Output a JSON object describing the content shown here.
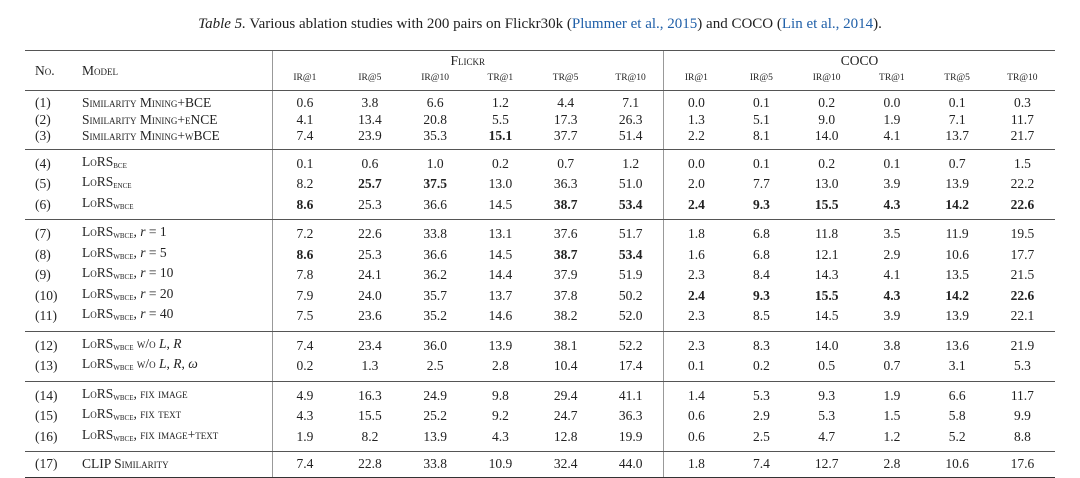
{
  "caption": {
    "label": "Table 5.",
    "text_before": " Various ablation studies with 200 pairs on Flickr30k (",
    "cite1": "Plummer et al., 2015",
    "text_mid": ") and COCO (",
    "cite2": "Lin et al., 2014",
    "text_after": ")."
  },
  "header": {
    "no": "No.",
    "model": "Model",
    "groups": [
      "Flickr",
      "COCO"
    ],
    "metrics": [
      "IR@1",
      "IR@5",
      "IR@10",
      "TR@1",
      "TR@5",
      "TR@10",
      "IR@1",
      "IR@5",
      "IR@10",
      "TR@1",
      "TR@5",
      "TR@10"
    ]
  },
  "groups": [
    [
      {
        "no": "(1)",
        "model": [
          {
            "t": "Similarity Mining+BCE",
            "c": "sc"
          }
        ],
        "values": [
          "0.6",
          "3.8",
          "6.6",
          "1.2",
          "4.4",
          "7.1",
          "0.0",
          "0.1",
          "0.2",
          "0.0",
          "0.1",
          "0.3"
        ],
        "bold": []
      },
      {
        "no": "(2)",
        "model": [
          {
            "t": "Similarity Mining+eNCE",
            "c": "sc"
          }
        ],
        "values": [
          "4.1",
          "13.4",
          "20.8",
          "5.5",
          "17.3",
          "26.3",
          "1.3",
          "5.1",
          "9.0",
          "1.9",
          "7.1",
          "11.7"
        ],
        "bold": []
      },
      {
        "no": "(3)",
        "model": [
          {
            "t": "Similarity Mining+wBCE",
            "c": "sc"
          }
        ],
        "values": [
          "7.4",
          "23.9",
          "35.3",
          "15.1",
          "37.7",
          "51.4",
          "2.2",
          "8.1",
          "14.0",
          "4.1",
          "13.7",
          "21.7"
        ],
        "bold": [
          3
        ]
      }
    ],
    [
      {
        "no": "(4)",
        "model": [
          {
            "t": "LoRS",
            "c": "sc"
          },
          {
            "t": "bce",
            "c": "sub"
          }
        ],
        "values": [
          "0.1",
          "0.6",
          "1.0",
          "0.2",
          "0.7",
          "1.2",
          "0.0",
          "0.1",
          "0.2",
          "0.1",
          "0.7",
          "1.5"
        ],
        "bold": []
      },
      {
        "no": "(5)",
        "model": [
          {
            "t": "LoRS",
            "c": "sc"
          },
          {
            "t": "ence",
            "c": "sub"
          }
        ],
        "values": [
          "8.2",
          "25.7",
          "37.5",
          "13.0",
          "36.3",
          "51.0",
          "2.0",
          "7.7",
          "13.0",
          "3.9",
          "13.9",
          "22.2"
        ],
        "bold": [
          1,
          2
        ]
      },
      {
        "no": "(6)",
        "model": [
          {
            "t": "LoRS",
            "c": "sc"
          },
          {
            "t": "wbce",
            "c": "sub"
          }
        ],
        "values": [
          "8.6",
          "25.3",
          "36.6",
          "14.5",
          "38.7",
          "53.4",
          "2.4",
          "9.3",
          "15.5",
          "4.3",
          "14.2",
          "22.6"
        ],
        "bold": [
          0,
          4,
          5,
          6,
          7,
          8,
          9,
          10,
          11
        ]
      }
    ],
    [
      {
        "no": "(7)",
        "model": [
          {
            "t": "LoRS",
            "c": "sc"
          },
          {
            "t": "wbce",
            "c": "sub"
          },
          {
            "t": ", ",
            "c": ""
          },
          {
            "t": "r",
            "c": "it"
          },
          {
            "t": " = 1",
            "c": ""
          }
        ],
        "values": [
          "7.2",
          "22.6",
          "33.8",
          "13.1",
          "37.6",
          "51.7",
          "1.8",
          "6.8",
          "11.8",
          "3.5",
          "11.9",
          "19.5"
        ],
        "bold": []
      },
      {
        "no": "(8)",
        "model": [
          {
            "t": "LoRS",
            "c": "sc"
          },
          {
            "t": "wbce",
            "c": "sub"
          },
          {
            "t": ", ",
            "c": ""
          },
          {
            "t": "r",
            "c": "it"
          },
          {
            "t": " = 5",
            "c": ""
          }
        ],
        "values": [
          "8.6",
          "25.3",
          "36.6",
          "14.5",
          "38.7",
          "53.4",
          "1.6",
          "6.8",
          "12.1",
          "2.9",
          "10.6",
          "17.7"
        ],
        "bold": [
          0,
          4,
          5
        ]
      },
      {
        "no": "(9)",
        "model": [
          {
            "t": "LoRS",
            "c": "sc"
          },
          {
            "t": "wbce",
            "c": "sub"
          },
          {
            "t": ", ",
            "c": ""
          },
          {
            "t": "r",
            "c": "it"
          },
          {
            "t": " = 10",
            "c": ""
          }
        ],
        "values": [
          "7.8",
          "24.1",
          "36.2",
          "14.4",
          "37.9",
          "51.9",
          "2.3",
          "8.4",
          "14.3",
          "4.1",
          "13.5",
          "21.5"
        ],
        "bold": []
      },
      {
        "no": "(10)",
        "model": [
          {
            "t": "LoRS",
            "c": "sc"
          },
          {
            "t": "wbce",
            "c": "sub"
          },
          {
            "t": ", ",
            "c": ""
          },
          {
            "t": "r",
            "c": "it"
          },
          {
            "t": " = 20",
            "c": ""
          }
        ],
        "values": [
          "7.9",
          "24.0",
          "35.7",
          "13.7",
          "37.8",
          "50.2",
          "2.4",
          "9.3",
          "15.5",
          "4.3",
          "14.2",
          "22.6"
        ],
        "bold": [
          6,
          7,
          8,
          9,
          10,
          11
        ]
      },
      {
        "no": "(11)",
        "model": [
          {
            "t": "LoRS",
            "c": "sc"
          },
          {
            "t": "wbce",
            "c": "sub"
          },
          {
            "t": ", ",
            "c": ""
          },
          {
            "t": "r",
            "c": "it"
          },
          {
            "t": " = 40",
            "c": ""
          }
        ],
        "values": [
          "7.5",
          "23.6",
          "35.2",
          "14.6",
          "38.2",
          "52.0",
          "2.3",
          "8.5",
          "14.5",
          "3.9",
          "13.9",
          "22.1"
        ],
        "bold": []
      }
    ],
    [
      {
        "no": "(12)",
        "model": [
          {
            "t": "LoRS",
            "c": "sc"
          },
          {
            "t": "wbce",
            "c": "sub"
          },
          {
            "t": " w/o ",
            "c": "sc"
          },
          {
            "t": "L",
            "c": "it"
          },
          {
            "t": ", ",
            "c": ""
          },
          {
            "t": "R",
            "c": "it"
          }
        ],
        "values": [
          "7.4",
          "23.4",
          "36.0",
          "13.9",
          "38.1",
          "52.2",
          "2.3",
          "8.3",
          "14.0",
          "3.8",
          "13.6",
          "21.9"
        ],
        "bold": []
      },
      {
        "no": "(13)",
        "model": [
          {
            "t": "LoRS",
            "c": "sc"
          },
          {
            "t": "wbce",
            "c": "sub"
          },
          {
            "t": " w/o ",
            "c": "sc"
          },
          {
            "t": "L",
            "c": "it"
          },
          {
            "t": ", ",
            "c": ""
          },
          {
            "t": "R",
            "c": "it"
          },
          {
            "t": ", ",
            "c": ""
          },
          {
            "t": "ω",
            "c": "it"
          }
        ],
        "values": [
          "0.2",
          "1.3",
          "2.5",
          "2.8",
          "10.4",
          "17.4",
          "0.1",
          "0.2",
          "0.5",
          "0.7",
          "3.1",
          "5.3"
        ],
        "bold": []
      }
    ],
    [
      {
        "no": "(14)",
        "model": [
          {
            "t": "LoRS",
            "c": "sc"
          },
          {
            "t": "wbce",
            "c": "sub"
          },
          {
            "t": ", fix image",
            "c": "sc"
          }
        ],
        "values": [
          "4.9",
          "16.3",
          "24.9",
          "9.8",
          "29.4",
          "41.1",
          "1.4",
          "5.3",
          "9.3",
          "1.9",
          "6.6",
          "11.7"
        ],
        "bold": []
      },
      {
        "no": "(15)",
        "model": [
          {
            "t": "LoRS",
            "c": "sc"
          },
          {
            "t": "wbce",
            "c": "sub"
          },
          {
            "t": ", fix text",
            "c": "sc"
          }
        ],
        "values": [
          "4.3",
          "15.5",
          "25.2",
          "9.2",
          "24.7",
          "36.3",
          "0.6",
          "2.9",
          "5.3",
          "1.5",
          "5.8",
          "9.9"
        ],
        "bold": []
      },
      {
        "no": "(16)",
        "model": [
          {
            "t": "LoRS",
            "c": "sc"
          },
          {
            "t": "wbce",
            "c": "sub"
          },
          {
            "t": ", fix image+text",
            "c": "sc"
          }
        ],
        "values": [
          "1.9",
          "8.2",
          "13.9",
          "4.3",
          "12.8",
          "19.9",
          "0.6",
          "2.5",
          "4.7",
          "1.2",
          "5.2",
          "8.8"
        ],
        "bold": []
      }
    ],
    [
      {
        "no": "(17)",
        "model": [
          {
            "t": "CLIP Similarity",
            "c": "sc"
          }
        ],
        "values": [
          "7.4",
          "22.8",
          "33.8",
          "10.9",
          "32.4",
          "44.0",
          "1.8",
          "7.4",
          "12.7",
          "2.8",
          "10.6",
          "17.6"
        ],
        "bold": []
      }
    ]
  ]
}
